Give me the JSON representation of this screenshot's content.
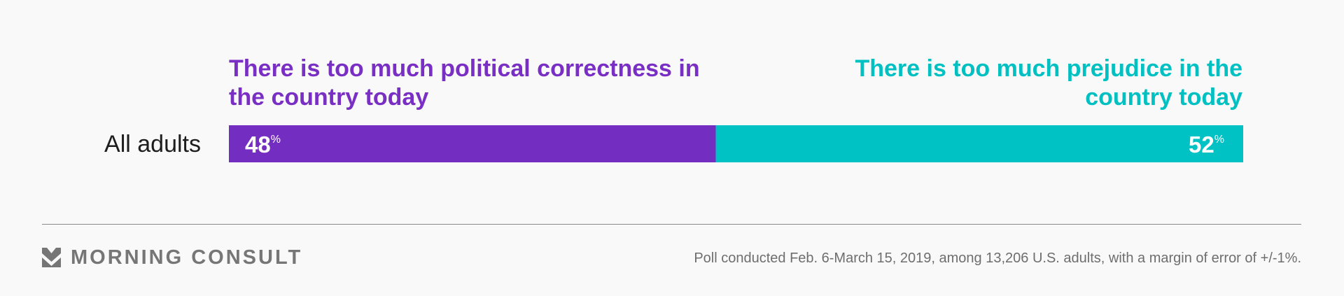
{
  "chart_data": {
    "type": "bar",
    "orientation": "horizontal-stacked",
    "categories": [
      "All adults"
    ],
    "series": [
      {
        "name": "There is too much political correctness in the country today",
        "values": [
          48
        ],
        "color": "#742dc1"
      },
      {
        "name": "There is too much prejudice in the country today",
        "values": [
          52
        ],
        "color": "#00c2c4"
      }
    ],
    "value_suffix": "%",
    "xlim": [
      0,
      100
    ]
  },
  "header": {
    "left_label": "There is too much political correctness in the country today",
    "right_label": "There is too much prejudice in the country today"
  },
  "footer": {
    "brand_name": "MORNING CONSULT",
    "brand_icon": "morning-consult-chevron-logo",
    "note": "Poll conducted Feb. 6-March 15, 2019, among 13,206 U.S. adults, with a margin of error of +/-1%."
  }
}
